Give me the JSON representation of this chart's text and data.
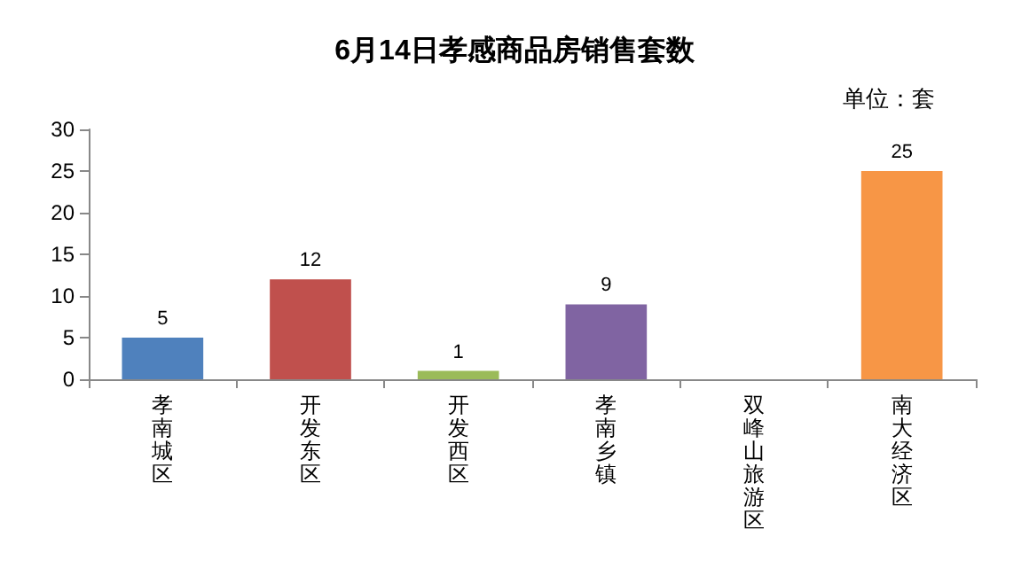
{
  "chart_data": {
    "type": "bar",
    "title": "6月14日孝感商品房销售套数",
    "subtitle": "单位：套",
    "categories": [
      "孝南城区",
      "开发东区",
      "开发西区",
      "孝南乡镇",
      "双峰山旅游区",
      "南大经济区"
    ],
    "values": [
      5,
      12,
      1,
      9,
      0,
      25
    ],
    "colors": [
      "#4f81bd",
      "#c0504d",
      "#9bbb59",
      "#8064a2",
      "#4bacc6",
      "#f79646"
    ],
    "value_labels": [
      "5",
      "12",
      "1",
      "9",
      null,
      "25"
    ],
    "ylim": [
      0,
      30
    ],
    "yticks": [
      0,
      5,
      10,
      15,
      20,
      25,
      30
    ],
    "grid": false
  }
}
